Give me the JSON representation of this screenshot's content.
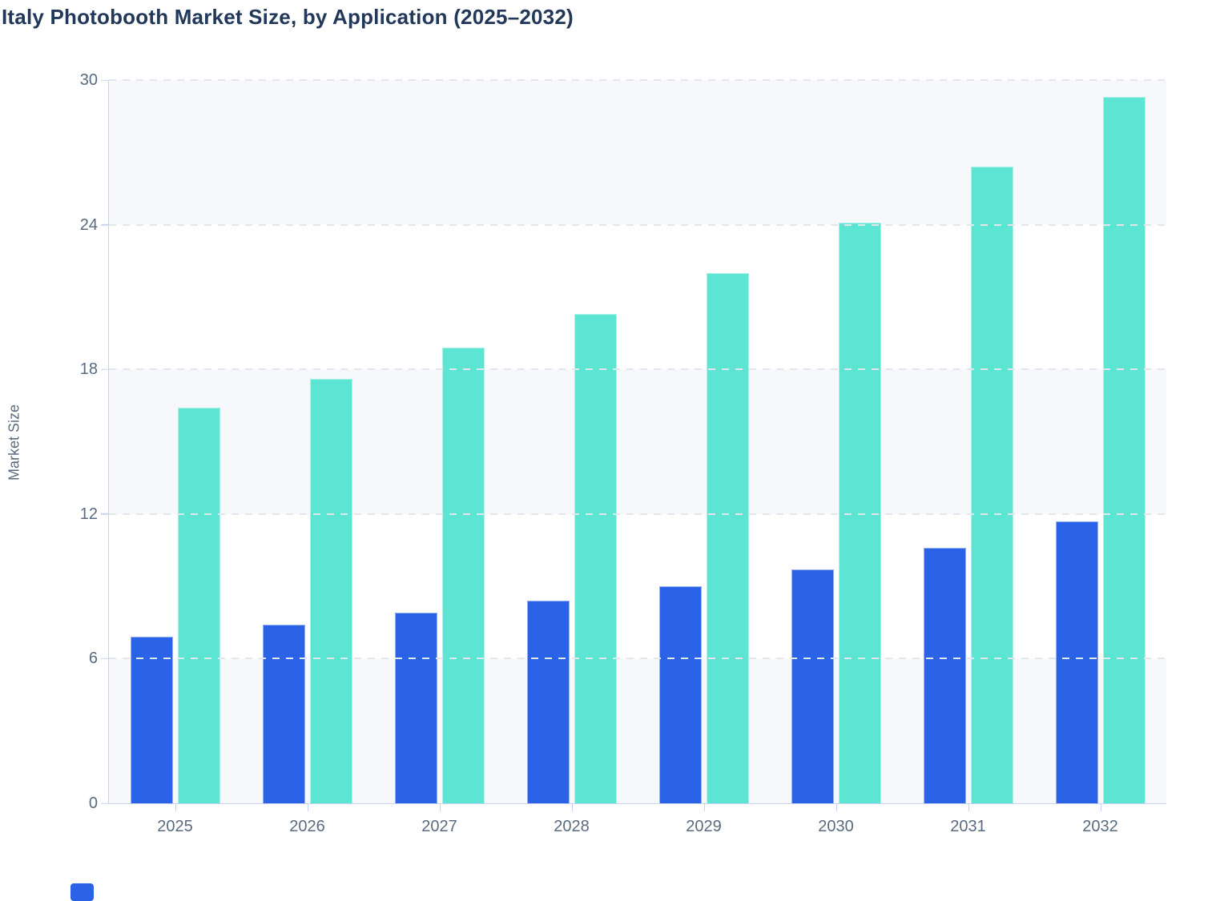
{
  "title": "Italy Photobooth Market Size, by Application (2025–2032)",
  "colors": {
    "title_text": "#22385a",
    "axis_text": "#5a6b80",
    "axis_line": "#c9d3f1",
    "gridline": "#e3e6eb",
    "stripe_band": "#f7f8fb",
    "series_blue": "#2b63e8",
    "series_teal": "#5be5d2"
  },
  "legend": {
    "partial_swatch_visible": true,
    "partial_swatch_color": "#2b63e8"
  },
  "chart_data": {
    "type": "bar",
    "title": "Italy Photobooth Market Size, by Application (2025–2032)",
    "xlabel": "",
    "ylabel": "Market Size",
    "ylim": [
      0,
      30
    ],
    "ytick_values": [
      0,
      6,
      12,
      18,
      24,
      30
    ],
    "grid": "horizontal-dashed",
    "legend_position": "below-chart (cut off, not visible)",
    "categories": [
      "2025",
      "2026",
      "2027",
      "2028",
      "2029",
      "2030",
      "2031",
      "2032"
    ],
    "series": [
      {
        "name": "blue",
        "color": "#2b63e8",
        "values": [
          6.9,
          7.4,
          7.9,
          8.4,
          9.0,
          9.7,
          10.6,
          11.7
        ]
      },
      {
        "name": "teal",
        "color": "#5be5d2",
        "values": [
          16.4,
          17.6,
          18.9,
          20.3,
          22.0,
          24.1,
          26.4,
          29.3
        ]
      }
    ]
  }
}
